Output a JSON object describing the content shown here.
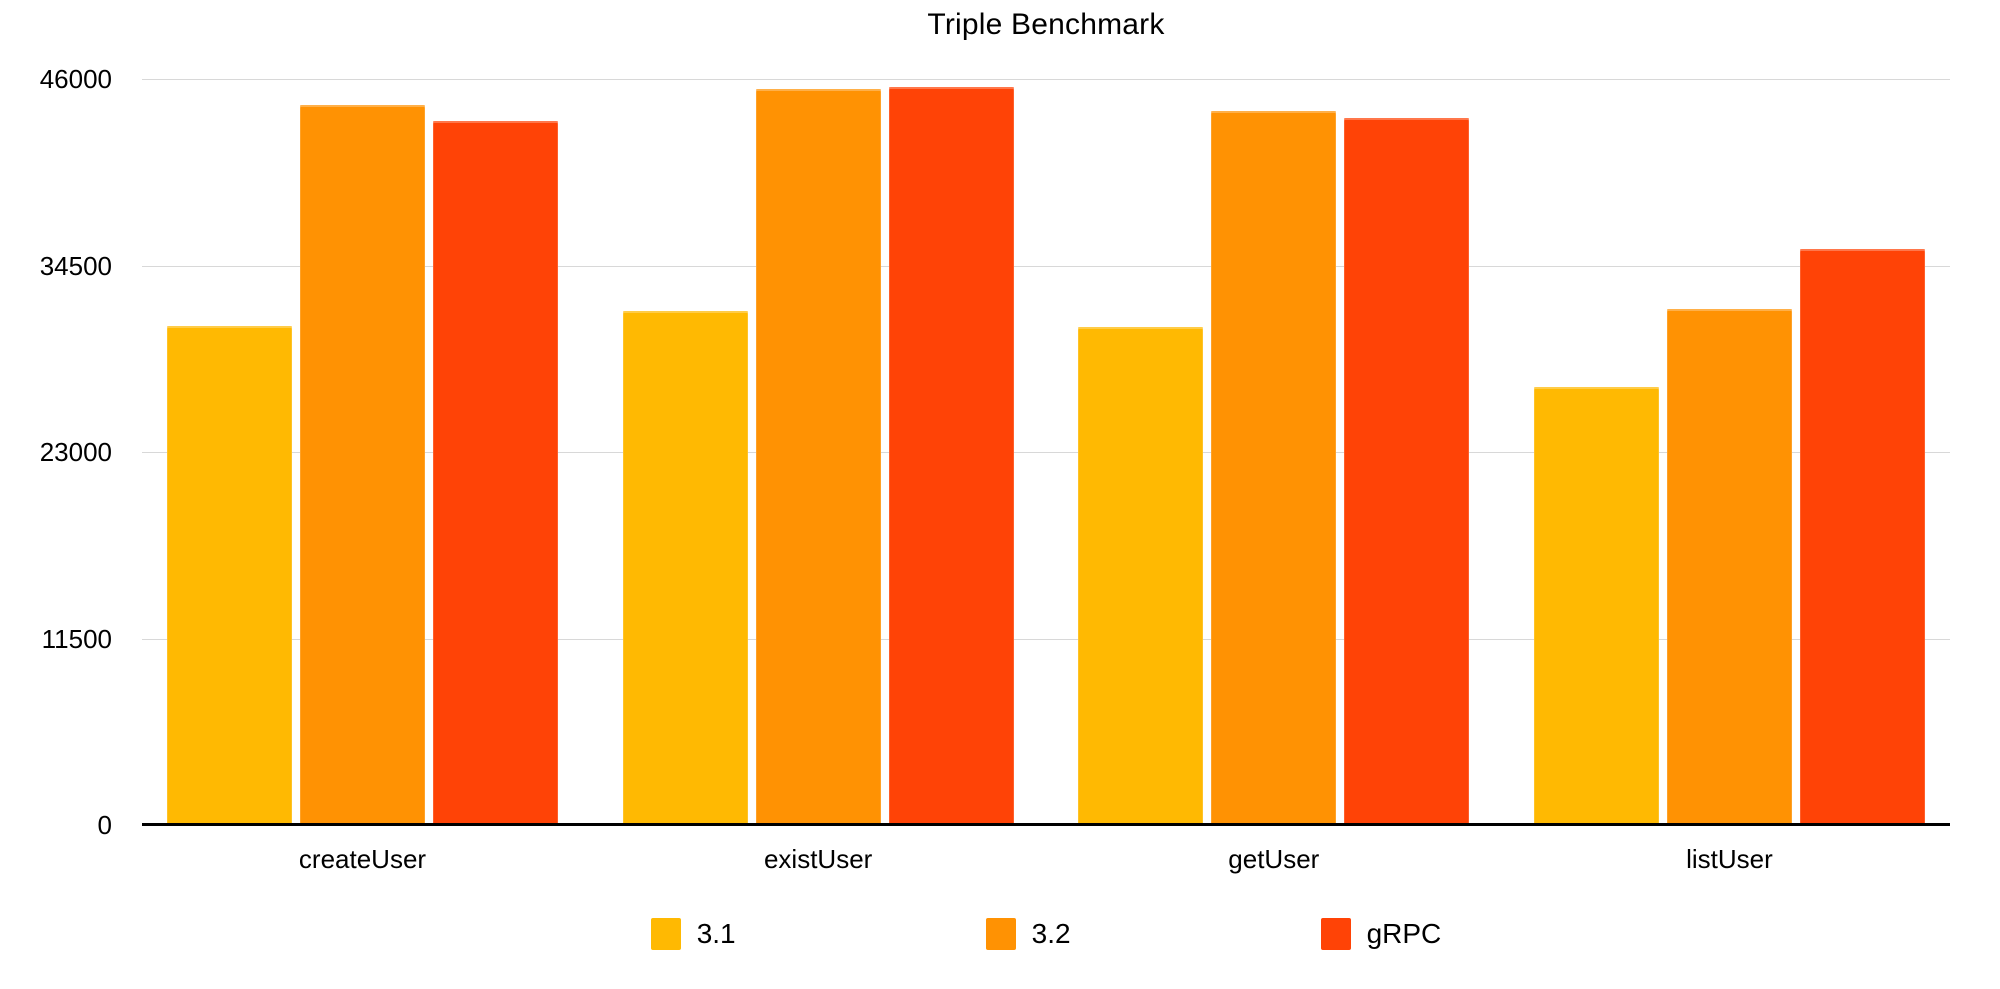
{
  "chart_data": {
    "type": "bar",
    "title": "Triple Benchmark",
    "categories": [
      "createUser",
      "existUser",
      "getUser",
      "listUser"
    ],
    "series": [
      {
        "name": "3.1",
        "color": "#FFB902",
        "values": [
          30800,
          31700,
          30700,
          27000
        ]
      },
      {
        "name": "3.2",
        "color": "#FF9203",
        "values": [
          44400,
          45400,
          44000,
          31800
        ]
      },
      {
        "name": "gRPC",
        "color": "#FF4306",
        "values": [
          43400,
          45500,
          43600,
          35500
        ]
      }
    ],
    "y_axis": {
      "min": 0,
      "max": 46000,
      "ticks": [
        46000,
        34500,
        23000,
        11500,
        0
      ]
    },
    "xlabel": "",
    "ylabel": "",
    "grid": true,
    "gridline_color": "#d8d8d8",
    "axis_line_color": "#000000",
    "background": "#ffffff",
    "legend_position": "bottom"
  }
}
